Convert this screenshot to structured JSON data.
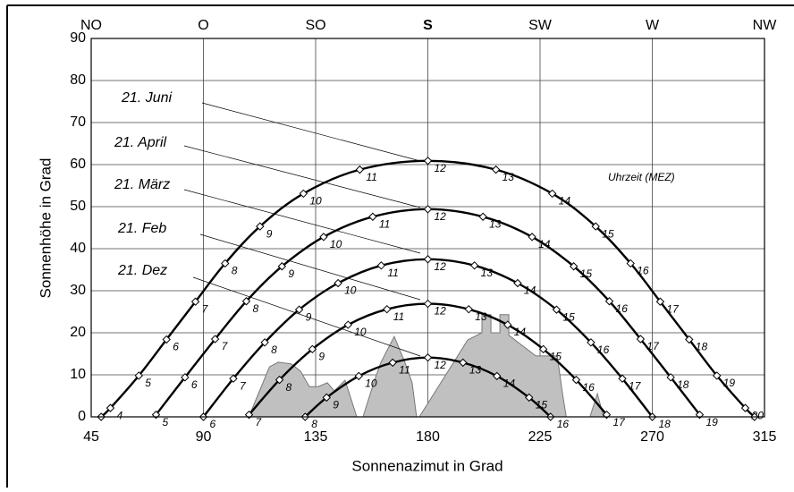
{
  "chart_data": {
    "type": "sunpath",
    "xlabel": "Sonnenazimut in Grad",
    "ylabel": "Sonnenhöhe in Grad",
    "annotation": "Uhrzeit (MEZ)",
    "xlim": [
      45,
      315
    ],
    "xticks": [
      45,
      90,
      135,
      180,
      225,
      270,
      315
    ],
    "top_labels": [
      "NO",
      "O",
      "SO",
      "S",
      "SW",
      "W",
      "NW"
    ],
    "ylim": [
      0,
      90
    ],
    "yticks": [
      0,
      10,
      20,
      30,
      40,
      50,
      60,
      70,
      80,
      90
    ],
    "grid": true,
    "series": [
      {
        "name": "21. Juni",
        "color": "#000000",
        "x": [
          49,
          52.7,
          64.1,
          75.2,
          86.8,
          98.7,
          112.7,
          130.1,
          152.7,
          180,
          207.3,
          229.9,
          247.3,
          261.3,
          273.2,
          284.8,
          295.9,
          307.3,
          311
        ],
        "values": [
          0,
          2.1,
          9.8,
          18.4,
          27.4,
          36.5,
          45.3,
          53.1,
          58.8,
          60.9,
          58.8,
          53.1,
          45.3,
          36.5,
          27.4,
          18.4,
          9.8,
          2.1,
          0
        ],
        "labels": [
          null,
          "4",
          "5",
          "6",
          "7",
          "8",
          "9",
          "10",
          "11",
          "12",
          "13",
          "14",
          "15",
          "16",
          "17",
          "18",
          "19",
          "20",
          null
        ]
      },
      {
        "name": "21. April",
        "color": "#000000",
        "x": [
          71,
          82.6,
          94.7,
          107.2,
          121.5,
          138.2,
          157.9,
          180,
          202.1,
          221.8,
          238.5,
          252.8,
          265.3,
          277.4,
          289
        ],
        "values": [
          0.5,
          9.4,
          18.5,
          27.5,
          35.8,
          42.8,
          47.6,
          49.4,
          47.6,
          42.8,
          35.8,
          27.5,
          18.5,
          9.4,
          0.5
        ],
        "labels": [
          "5",
          "6",
          "7",
          "8",
          "9",
          "10",
          "11",
          "12",
          "13",
          "14",
          "15",
          "16",
          "17",
          "18",
          "19"
        ]
      },
      {
        "name": "21. März",
        "color": "#000000",
        "x": [
          90,
          102,
          114.6,
          128.4,
          144,
          161.3,
          180,
          198.7,
          216,
          231.6,
          245.4,
          258,
          270
        ],
        "values": [
          0,
          9.1,
          17.7,
          25.5,
          31.8,
          36,
          37.5,
          36,
          31.8,
          25.5,
          17.7,
          9.1,
          0
        ],
        "labels": [
          "6",
          "7",
          "8",
          "9",
          "10",
          "11",
          "12",
          "13",
          "14",
          "15",
          "16",
          "17",
          "18"
        ]
      },
      {
        "name": "21. Feb",
        "color": "#000000",
        "x": [
          108.3,
          120.5,
          133.7,
          148,
          163.6,
          180,
          196.4,
          212,
          226.3,
          239.5,
          251.7
        ],
        "values": [
          0.5,
          8.8,
          16.1,
          21.9,
          25.6,
          26.9,
          25.6,
          21.9,
          16.1,
          8.8,
          0.5
        ],
        "labels": [
          "7",
          "8",
          "9",
          "10",
          "11",
          "12",
          "13",
          "14",
          "15",
          "16",
          "17"
        ]
      },
      {
        "name": "21. Dez",
        "color": "#000000",
        "x": [
          130.8,
          139.4,
          152.3,
          165.9,
          180,
          194.1,
          207.7,
          220.6,
          229.2
        ],
        "values": [
          0,
          4.6,
          9.7,
          12.9,
          14.1,
          12.9,
          9.7,
          4.6,
          0
        ],
        "labels": [
          "8",
          "9",
          "10",
          "11",
          "12",
          "13",
          "14",
          "15",
          "16"
        ]
      }
    ],
    "horizon": {
      "color": "#c0c0c0",
      "x": [
        108.2,
        116.5,
        120,
        125.3,
        128.9,
        132.5,
        136,
        139.7,
        142.5,
        146.8,
        151.5,
        153,
        154,
        158.6,
        161.2,
        166.5,
        170.8,
        173.7,
        175.5,
        176,
        176.6,
        196,
        201.7,
        201.7,
        205.3,
        205.3,
        208.9,
        208.9,
        212.5,
        212.5,
        223.3,
        231.9,
        234,
        235.5,
        240,
        245,
        248,
        250.5
      ],
      "values": [
        0,
        11.9,
        13,
        12.6,
        10.9,
        7.2,
        7.2,
        8.1,
        6.2,
        8.7,
        0,
        null,
        0,
        8.7,
        13,
        19.1,
        13,
        8.1,
        0,
        null,
        0,
        18.3,
        20,
        24.3,
        24.3,
        20,
        20,
        24.3,
        24.3,
        19.4,
        14.5,
        14.5,
        5.5,
        0,
        null,
        0,
        5.5,
        0
      ]
    }
  }
}
